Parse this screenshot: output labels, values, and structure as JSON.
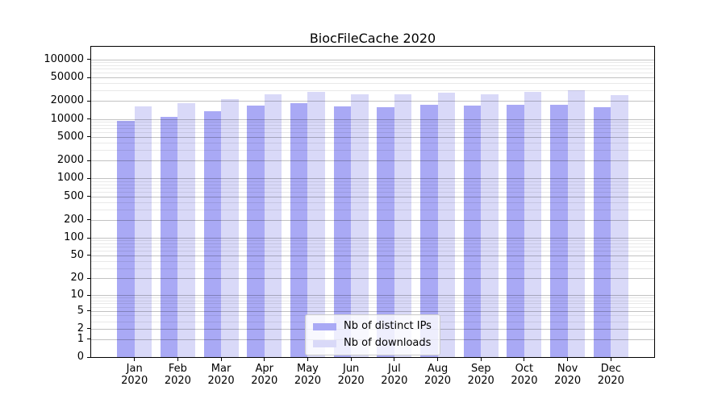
{
  "title": "BiocFileCache 2020",
  "chart_data": {
    "type": "bar",
    "title": "BiocFileCache 2020",
    "xlabel": "",
    "ylabel": "",
    "categories": [
      "Jan",
      "Feb",
      "Mar",
      "Apr",
      "May",
      "Jun",
      "Jul",
      "Aug",
      "Sep",
      "Oct",
      "Nov",
      "Dec"
    ],
    "x_year_label": "2020",
    "series": [
      {
        "name": "Nb of distinct IPs",
        "color": "#a9a9f5",
        "values": [
          9400,
          10750,
          13400,
          17000,
          18300,
          16500,
          16000,
          17350,
          16650,
          17200,
          17500,
          16000
        ]
      },
      {
        "name": "Nb of downloads",
        "color": "#d9d9f8",
        "values": [
          16150,
          18450,
          21900,
          25800,
          28650,
          25800,
          26400,
          27700,
          26400,
          29000,
          30200,
          25100
        ]
      }
    ],
    "y_scale": "log10(1+x)",
    "y_ticks": [
      0,
      1,
      2,
      5,
      10,
      20,
      50,
      100,
      200,
      500,
      1000,
      2000,
      5000,
      10000,
      20000,
      50000,
      100000
    ],
    "ylim": [
      0,
      164000
    ],
    "grid": true,
    "legend_position": "lower center"
  }
}
